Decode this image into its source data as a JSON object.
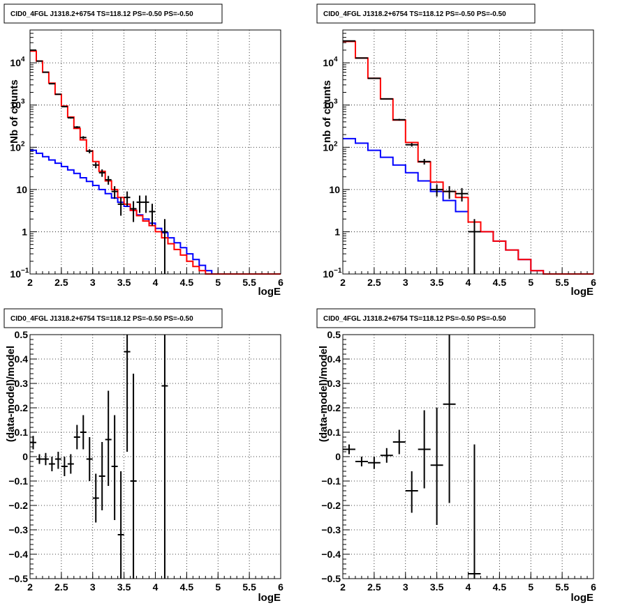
{
  "colors": {
    "data": "#000000",
    "total_model": "#ff0000",
    "background_model": "#0000ff",
    "grid": "#000000"
  },
  "chart_data": [
    {
      "type": "line",
      "title": "CID0_4FGL J1318.2+6754 TS=118.12 PS=-0.50 PS=-0.50",
      "xlabel": "logE",
      "ylabel": "Nb of counts",
      "xlim": [
        2,
        6
      ],
      "ylim": [
        0.1,
        60000
      ],
      "yscale": "log",
      "grid": true,
      "x_ticks": [
        "2",
        "2.5",
        "3",
        "3.5",
        "4",
        "4.5",
        "5",
        "5.5",
        "6"
      ],
      "y_ticks": [
        {
          "value": 0.1,
          "label": "10",
          "exp": "−1"
        },
        {
          "value": 1,
          "label": "1",
          "exp": ""
        },
        {
          "value": 10,
          "label": "10",
          "exp": ""
        },
        {
          "value": 100,
          "label": "10",
          "exp": "2"
        },
        {
          "value": 1000,
          "label": "10",
          "exp": "3"
        },
        {
          "value": 10000,
          "label": "10",
          "exp": "4"
        }
      ],
      "bin_edges": [
        2.0,
        2.1,
        2.2,
        2.3,
        2.4,
        2.5,
        2.6,
        2.7,
        2.8,
        2.9,
        3.0,
        3.1,
        3.2,
        3.3,
        3.4,
        3.5,
        3.6,
        3.7,
        3.8,
        3.9,
        4.0,
        4.1,
        4.2,
        4.3,
        4.4,
        4.5,
        4.6,
        4.7,
        4.8,
        4.9,
        5.0,
        5.1,
        5.2,
        5.3,
        5.4,
        5.5,
        5.6,
        5.7,
        5.8,
        5.9,
        6.0
      ],
      "series": [
        {
          "role": "total_model",
          "values": [
            19000,
            11000,
            6000,
            3300,
            1800,
            950,
            520,
            280,
            150,
            82,
            46,
            27,
            16,
            10,
            6.5,
            4.5,
            3.2,
            2.4,
            1.8,
            1.4,
            1.0,
            0.72,
            0.52,
            0.38,
            0.28,
            0.2,
            0.15,
            0.12,
            0.1,
            0.1,
            0.1,
            0.1,
            0.1,
            0.1,
            0.1,
            0.1,
            0.1,
            0.1,
            0.1,
            0.1
          ]
        },
        {
          "role": "background_model",
          "values": [
            85,
            72,
            60,
            50,
            42,
            35,
            29,
            24,
            19,
            15.5,
            12.5,
            10,
            8,
            6.3,
            5,
            4,
            3.2,
            2.5,
            2,
            1.6,
            1.2,
            0.95,
            0.72,
            0.55,
            0.42,
            0.3,
            0.22,
            0.16,
            0.12,
            0.1,
            0.1,
            0.1,
            0.1,
            0.1,
            0.1,
            0.1,
            0.1,
            0.1,
            0.1,
            0.1
          ]
        }
      ],
      "points": [
        {
          "x": 2.05,
          "y": 20000,
          "xerr": 0.05,
          "ylo": 19800,
          "yhi": 20200
        },
        {
          "x": 2.15,
          "y": 11000,
          "xerr": 0.05,
          "ylo": 10900,
          "yhi": 11100
        },
        {
          "x": 2.25,
          "y": 6000,
          "xerr": 0.05,
          "ylo": 5920,
          "yhi": 6080
        },
        {
          "x": 2.35,
          "y": 3200,
          "xerr": 0.05,
          "ylo": 3140,
          "yhi": 3260
        },
        {
          "x": 2.45,
          "y": 1800,
          "xerr": 0.05,
          "ylo": 1760,
          "yhi": 1840
        },
        {
          "x": 2.55,
          "y": 920,
          "xerr": 0.05,
          "ylo": 890,
          "yhi": 950
        },
        {
          "x": 2.65,
          "y": 500,
          "xerr": 0.05,
          "ylo": 478,
          "yhi": 522
        },
        {
          "x": 2.75,
          "y": 300,
          "xerr": 0.05,
          "ylo": 283,
          "yhi": 317
        },
        {
          "x": 2.85,
          "y": 170,
          "xerr": 0.05,
          "ylo": 157,
          "yhi": 183
        },
        {
          "x": 2.95,
          "y": 81,
          "xerr": 0.05,
          "ylo": 72,
          "yhi": 90
        },
        {
          "x": 3.05,
          "y": 38,
          "xerr": 0.05,
          "ylo": 32,
          "yhi": 44
        },
        {
          "x": 3.15,
          "y": 25,
          "xerr": 0.05,
          "ylo": 20,
          "yhi": 30
        },
        {
          "x": 3.25,
          "y": 17,
          "xerr": 0.05,
          "ylo": 13,
          "yhi": 21
        },
        {
          "x": 3.35,
          "y": 9,
          "xerr": 0.05,
          "ylo": 6,
          "yhi": 12
        },
        {
          "x": 3.45,
          "y": 4.5,
          "xerr": 0.05,
          "ylo": 2.4,
          "yhi": 6.6
        },
        {
          "x": 3.55,
          "y": 6.5,
          "xerr": 0.05,
          "ylo": 4,
          "yhi": 9
        },
        {
          "x": 3.65,
          "y": 3.5,
          "xerr": 0.05,
          "ylo": 1.7,
          "yhi": 5.3
        },
        {
          "x": 3.75,
          "y": 5,
          "xerr": 0.05,
          "ylo": 2.8,
          "yhi": 7.2
        },
        {
          "x": 3.85,
          "y": 5,
          "xerr": 0.05,
          "ylo": 2.8,
          "yhi": 7.2
        },
        {
          "x": 3.95,
          "y": 3,
          "xerr": 0.05,
          "ylo": 1.4,
          "yhi": 4.6
        },
        {
          "x": 4.15,
          "y": 1,
          "xerr": 0.05,
          "ylo": 0.1,
          "yhi": 2
        }
      ]
    },
    {
      "type": "line",
      "title": "CID0_4FGL J1318.2+6754 TS=118.12 PS=-0.50 PS=-0.50",
      "xlabel": "logE",
      "ylabel": "nb of counts",
      "xlim": [
        2,
        6
      ],
      "ylim": [
        0.1,
        60000
      ],
      "yscale": "log",
      "grid": true,
      "x_ticks": [
        "2",
        "2.5",
        "3",
        "3.5",
        "4",
        "4.5",
        "5",
        "5.5",
        "6"
      ],
      "y_ticks": [
        {
          "value": 0.1,
          "label": "10",
          "exp": "−1"
        },
        {
          "value": 1,
          "label": "1",
          "exp": ""
        },
        {
          "value": 10,
          "label": "10",
          "exp": ""
        },
        {
          "value": 100,
          "label": "10",
          "exp": "2"
        },
        {
          "value": 1000,
          "label": "10",
          "exp": "3"
        },
        {
          "value": 10000,
          "label": "10",
          "exp": "4"
        }
      ],
      "bin_edges": [
        2.0,
        2.2,
        2.4,
        2.6,
        2.8,
        3.0,
        3.2,
        3.4,
        3.6,
        3.8,
        4.0,
        4.2,
        4.4,
        4.6,
        4.8,
        5.0,
        5.2,
        5.4,
        5.6,
        5.8,
        6.0
      ],
      "series": [
        {
          "role": "total_model",
          "values": [
            32000,
            13000,
            4300,
            1400,
            440,
            130,
            45,
            15,
            9,
            6.5,
            1.7,
            1.0,
            0.6,
            0.37,
            0.22,
            0.12,
            0.1,
            0.1,
            0.1,
            0.1
          ]
        },
        {
          "role": "background_model",
          "values": [
            160,
            125,
            85,
            58,
            38,
            25,
            16,
            9,
            5.5,
            3,
            1.7,
            1.0,
            0.6,
            0.37,
            0.22,
            0.12,
            0.1,
            0.1,
            0.1,
            0.1
          ]
        }
      ],
      "points": [
        {
          "x": 2.1,
          "y": 33000,
          "xerr": 0.1,
          "ylo": 32600,
          "yhi": 33400
        },
        {
          "x": 2.3,
          "y": 13000,
          "xerr": 0.1,
          "ylo": 12800,
          "yhi": 13200
        },
        {
          "x": 2.5,
          "y": 4300,
          "xerr": 0.1,
          "ylo": 4200,
          "yhi": 4400
        },
        {
          "x": 2.7,
          "y": 1400,
          "xerr": 0.1,
          "ylo": 1360,
          "yhi": 1440
        },
        {
          "x": 2.9,
          "y": 450,
          "xerr": 0.1,
          "ylo": 428,
          "yhi": 472
        },
        {
          "x": 3.1,
          "y": 115,
          "xerr": 0.1,
          "ylo": 104,
          "yhi": 126
        },
        {
          "x": 3.3,
          "y": 46,
          "xerr": 0.1,
          "ylo": 39,
          "yhi": 53
        },
        {
          "x": 3.5,
          "y": 10,
          "xerr": 0.1,
          "ylo": 6.8,
          "yhi": 13.2
        },
        {
          "x": 3.7,
          "y": 9,
          "xerr": 0.1,
          "ylo": 6,
          "yhi": 12
        },
        {
          "x": 3.9,
          "y": 8,
          "xerr": 0.1,
          "ylo": 5.2,
          "yhi": 10.8
        },
        {
          "x": 4.1,
          "y": 1,
          "xerr": 0.1,
          "ylo": 0.1,
          "yhi": 2
        }
      ]
    },
    {
      "type": "scatter",
      "title": "CID0_4FGL J1318.2+6754 TS=118.12 PS=-0.50 PS=-0.50",
      "xlabel": "logE",
      "ylabel": "(data-model)/model",
      "xlim": [
        2,
        6
      ],
      "ylim": [
        -0.5,
        0.5
      ],
      "grid": true,
      "x_ticks": [
        "2",
        "2.5",
        "3",
        "3.5",
        "4",
        "4.5",
        "5",
        "5.5",
        "6"
      ],
      "y_ticks": [
        "−0.5",
        "−0.4",
        "−0.3",
        "−0.2",
        "−0.1",
        "0",
        "0.1",
        "0.2",
        "0.3",
        "0.4",
        "0.5"
      ],
      "points": [
        {
          "x": 2.05,
          "y": 0.058,
          "xerr": 0.05,
          "ylo": 0.03,
          "yhi": 0.085
        },
        {
          "x": 2.15,
          "y": -0.01,
          "xerr": 0.05,
          "ylo": -0.03,
          "yhi": 0.01
        },
        {
          "x": 2.25,
          "y": -0.01,
          "xerr": 0.05,
          "ylo": -0.035,
          "yhi": 0.015
        },
        {
          "x": 2.35,
          "y": -0.03,
          "xerr": 0.05,
          "ylo": -0.06,
          "yhi": 0.0
        },
        {
          "x": 2.45,
          "y": -0.01,
          "xerr": 0.05,
          "ylo": -0.05,
          "yhi": 0.02
        },
        {
          "x": 2.55,
          "y": -0.04,
          "xerr": 0.05,
          "ylo": -0.08,
          "yhi": 0.0
        },
        {
          "x": 2.65,
          "y": -0.03,
          "xerr": 0.05,
          "ylo": -0.07,
          "yhi": 0.01
        },
        {
          "x": 2.75,
          "y": 0.08,
          "xerr": 0.05,
          "ylo": 0.03,
          "yhi": 0.13
        },
        {
          "x": 2.85,
          "y": 0.1,
          "xerr": 0.05,
          "ylo": 0.03,
          "yhi": 0.17
        },
        {
          "x": 2.95,
          "y": -0.01,
          "xerr": 0.05,
          "ylo": -0.1,
          "yhi": 0.08
        },
        {
          "x": 3.05,
          "y": -0.17,
          "xerr": 0.05,
          "ylo": -0.27,
          "yhi": -0.07
        },
        {
          "x": 3.15,
          "y": -0.08,
          "xerr": 0.05,
          "ylo": -0.22,
          "yhi": 0.06
        },
        {
          "x": 3.25,
          "y": 0.07,
          "xerr": 0.05,
          "ylo": -0.12,
          "yhi": 0.27
        },
        {
          "x": 3.35,
          "y": -0.04,
          "xerr": 0.05,
          "ylo": -0.26,
          "yhi": 0.17
        },
        {
          "x": 3.45,
          "y": -0.32,
          "xerr": 0.05,
          "ylo": -0.5,
          "yhi": -0.06
        },
        {
          "x": 3.55,
          "y": 0.43,
          "xerr": 0.05,
          "ylo": 0.02,
          "yhi": 0.5
        },
        {
          "x": 3.65,
          "y": -0.1,
          "xerr": 0.05,
          "ylo": -0.5,
          "yhi": 0.34
        },
        {
          "x": 4.15,
          "y": 0.29,
          "xerr": 0.05,
          "ylo": -0.5,
          "yhi": 0.5
        }
      ]
    },
    {
      "type": "scatter",
      "title": "CID0_4FGL J1318.2+6754 TS=118.12 PS=-0.50 PS=-0.50",
      "xlabel": "logE",
      "ylabel": "(data-model)/model",
      "xlim": [
        2,
        6
      ],
      "ylim": [
        -0.5,
        0.5
      ],
      "grid": true,
      "x_ticks": [
        "2",
        "2.5",
        "3",
        "3.5",
        "4",
        "4.5",
        "5",
        "5.5",
        "6"
      ],
      "y_ticks": [
        "−0.5",
        "−0.4",
        "−0.3",
        "−0.2",
        "−0.1",
        "0",
        "0.1",
        "0.2",
        "0.3",
        "0.4",
        "0.5"
      ],
      "points": [
        {
          "x": 2.1,
          "y": 0.03,
          "xerr": 0.1,
          "ylo": 0.01,
          "yhi": 0.05
        },
        {
          "x": 2.3,
          "y": -0.02,
          "xerr": 0.1,
          "ylo": -0.04,
          "yhi": 0.0
        },
        {
          "x": 2.5,
          "y": -0.025,
          "xerr": 0.1,
          "ylo": -0.05,
          "yhi": 0.0
        },
        {
          "x": 2.7,
          "y": 0.005,
          "xerr": 0.1,
          "ylo": -0.025,
          "yhi": 0.035
        },
        {
          "x": 2.9,
          "y": 0.06,
          "xerr": 0.1,
          "ylo": 0.01,
          "yhi": 0.11
        },
        {
          "x": 3.1,
          "y": -0.14,
          "xerr": 0.1,
          "ylo": -0.23,
          "yhi": -0.06
        },
        {
          "x": 3.3,
          "y": 0.03,
          "xerr": 0.1,
          "ylo": -0.13,
          "yhi": 0.19
        },
        {
          "x": 3.5,
          "y": -0.035,
          "xerr": 0.1,
          "ylo": -0.28,
          "yhi": 0.2
        },
        {
          "x": 3.7,
          "y": 0.215,
          "xerr": 0.1,
          "ylo": -0.19,
          "yhi": 0.5
        },
        {
          "x": 4.1,
          "y": -0.48,
          "xerr": 0.1,
          "ylo": -0.5,
          "yhi": 0.05
        }
      ]
    }
  ]
}
